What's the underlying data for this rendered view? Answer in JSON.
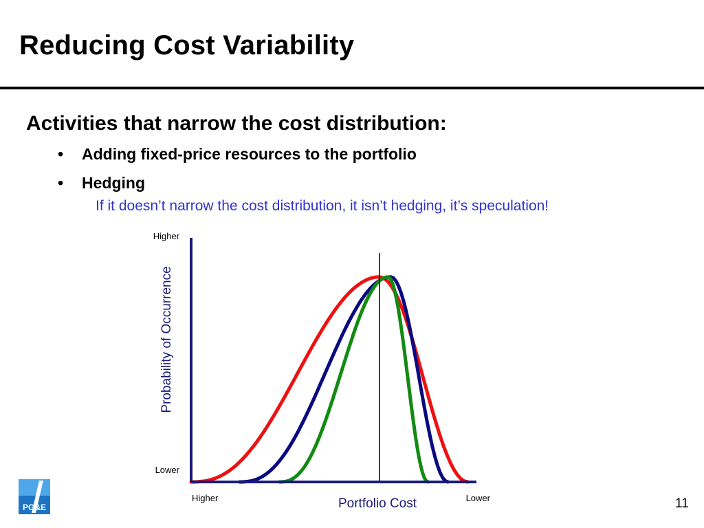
{
  "slide": {
    "title": "Reducing Cost Variability",
    "heading": "Activities that narrow the cost distribution:",
    "bullets": [
      "Adding fixed-price resources to the portfolio",
      "Hedging"
    ],
    "note": "If it doesn’t narrow the cost distribution, it isn’t hedging, it’s speculation!",
    "page_number": "11",
    "logo_text": "PG&E"
  },
  "colors": {
    "note": "#3333cc",
    "axis": "#1a1a7a",
    "red": "#ee1111",
    "navy": "#0a0a80",
    "green": "#138a13"
  },
  "chart_data": {
    "type": "line",
    "title": "",
    "xlabel": "Portfolio Cost",
    "ylabel": "Probability of Occurrence",
    "x_tick_labels": [
      "Higher",
      "Lower"
    ],
    "y_tick_labels": [
      "Lower",
      "Higher"
    ],
    "x_range": [
      0,
      100
    ],
    "y_range": [
      0,
      100
    ],
    "reference_line_x": 66,
    "grid": false,
    "series": [
      {
        "color": "#ee1111",
        "peak_x": 66,
        "peak_y": 84,
        "start_x": 0,
        "end_x": 97
      },
      {
        "color": "#0a0a80",
        "peak_x": 70,
        "peak_y": 84,
        "start_x": 17,
        "end_x": 90
      },
      {
        "color": "#138a13",
        "peak_x": 69,
        "peak_y": 84,
        "start_x": 31,
        "end_x": 83
      }
    ]
  }
}
